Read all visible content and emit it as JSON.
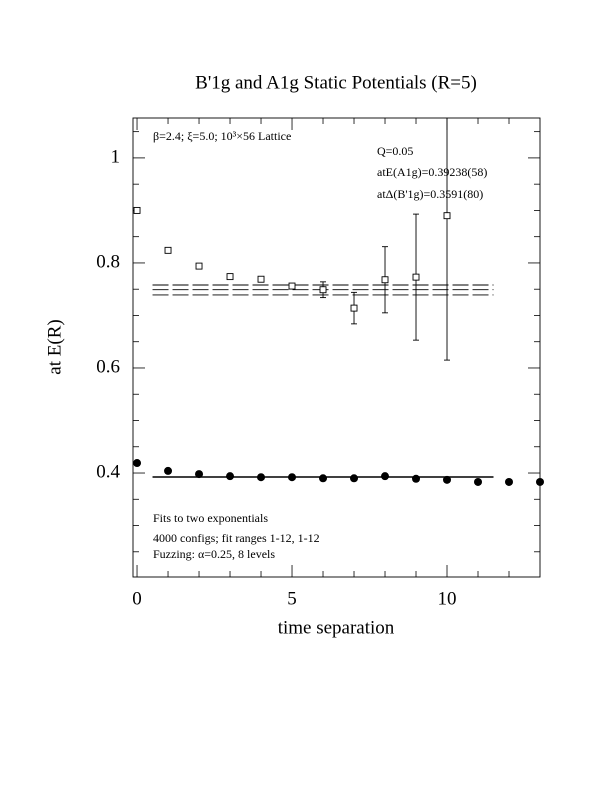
{
  "chart_data": {
    "type": "scatter",
    "title": "B'1g and A1g Static Potentials (R=5)",
    "x_label": "time separation",
    "y_label": "at E(R)",
    "annotations": [
      "β=2.4; ξ=5.0; 10³×56 Lattice",
      "Q=0.05",
      "atE(A1g)=0.39238(58)",
      "atΔ(B'1g)=0.3591(80)",
      "Fits to two exponentials",
      "4000 configs; fit ranges 1-12, 1-12",
      "Fuzzing: α=0.25, 8 levels"
    ],
    "xlim": [
      -0.13,
      13
    ],
    "ylim": [
      0.202,
      1.076
    ],
    "xticks": [
      0,
      5,
      10
    ],
    "yticks": [
      0.4,
      0.6,
      0.8,
      1
    ],
    "x_minor_ticks": [
      1,
      2,
      3,
      4,
      6,
      7,
      8,
      9,
      11,
      12
    ],
    "y_minor_ticks": [
      0.25,
      0.3,
      0.35,
      0.45,
      0.5,
      0.55,
      0.65,
      0.7,
      0.75,
      0.85,
      0.9,
      0.95,
      1.05
    ],
    "series": [
      {
        "marker": "open-square",
        "color": "#000000",
        "x": [
          0,
          1,
          2,
          3,
          4,
          5,
          6,
          7,
          8,
          9,
          10
        ],
        "values": [
          0.9,
          0.824,
          0.794,
          0.774,
          0.769,
          0.756,
          0.749,
          0.714,
          0.768,
          0.773,
          0.89
        ],
        "errors": [
          0,
          0,
          0,
          0,
          0,
          0.005,
          0.015,
          0.03,
          0.063,
          0.12,
          0.275
        ]
      },
      {
        "marker": "filled-circle",
        "color": "#000000",
        "x": [
          0,
          1,
          2,
          3,
          4,
          5,
          6,
          7,
          8,
          9,
          10,
          11,
          12,
          13
        ],
        "values": [
          0.419,
          0.404,
          0.398,
          0.394,
          0.392,
          0.392,
          0.39,
          0.39,
          0.394,
          0.389,
          0.387,
          0.383,
          0.383,
          0.383
        ]
      }
    ],
    "fits": [
      {
        "x": [
          0.5,
          11.5
        ],
        "values": [
          0.758,
          0.758
        ],
        "dash": true
      },
      {
        "x": [
          0.5,
          11.5
        ],
        "values": [
          0.749,
          0.749
        ],
        "dash": true
      },
      {
        "x": [
          0.5,
          11.5
        ],
        "values": [
          0.739,
          0.739
        ],
        "dash": true
      },
      {
        "x": [
          0.5,
          11.5
        ],
        "values": [
          0.3924,
          0.3924
        ],
        "dash": false
      }
    ]
  }
}
